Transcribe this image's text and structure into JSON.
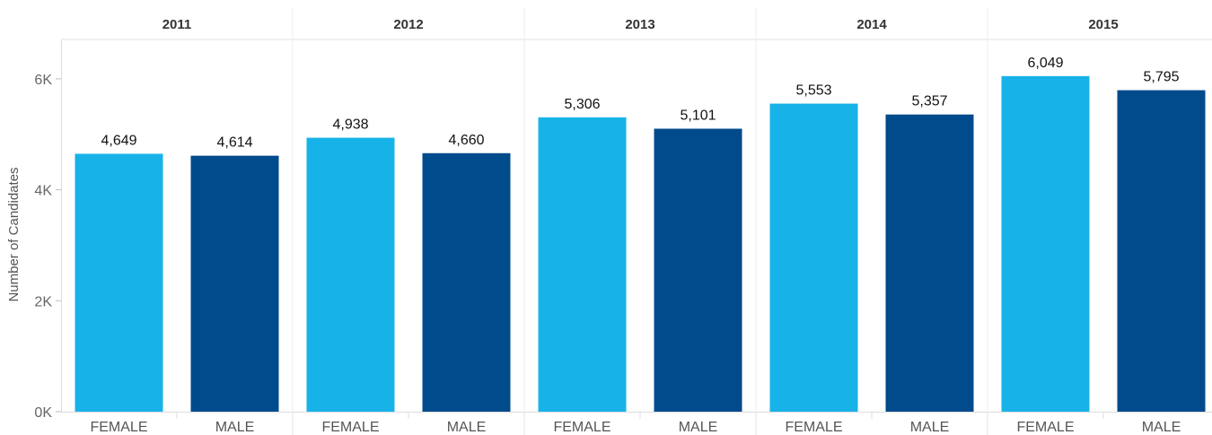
{
  "chart_data": {
    "type": "bar",
    "ylabel": "Number of Candidates",
    "ylim": [
      0,
      6800
    ],
    "y_ticks": [
      0,
      2000,
      4000,
      6000
    ],
    "y_tick_labels": [
      "0K",
      "2K",
      "4K",
      "6K"
    ],
    "grid": false,
    "panels": [
      {
        "year": "2011",
        "bars": [
          {
            "category": "FEMALE",
            "value": 4649,
            "label": "4,649"
          },
          {
            "category": "MALE",
            "value": 4614,
            "label": "4,614"
          }
        ]
      },
      {
        "year": "2012",
        "bars": [
          {
            "category": "FEMALE",
            "value": 4938,
            "label": "4,938"
          },
          {
            "category": "MALE",
            "value": 4660,
            "label": "4,660"
          }
        ]
      },
      {
        "year": "2013",
        "bars": [
          {
            "category": "FEMALE",
            "value": 5306,
            "label": "5,306"
          },
          {
            "category": "MALE",
            "value": 5101,
            "label": "5,101"
          }
        ]
      },
      {
        "year": "2014",
        "bars": [
          {
            "category": "FEMALE",
            "value": 5553,
            "label": "5,553"
          },
          {
            "category": "MALE",
            "value": 5357,
            "label": "5,357"
          }
        ]
      },
      {
        "year": "2015",
        "bars": [
          {
            "category": "FEMALE",
            "value": 6049,
            "label": "6,049"
          },
          {
            "category": "MALE",
            "value": 5795,
            "label": "5,795"
          }
        ]
      }
    ],
    "colors": {
      "FEMALE": "#17b3e8",
      "MALE": "#004b8c"
    }
  }
}
